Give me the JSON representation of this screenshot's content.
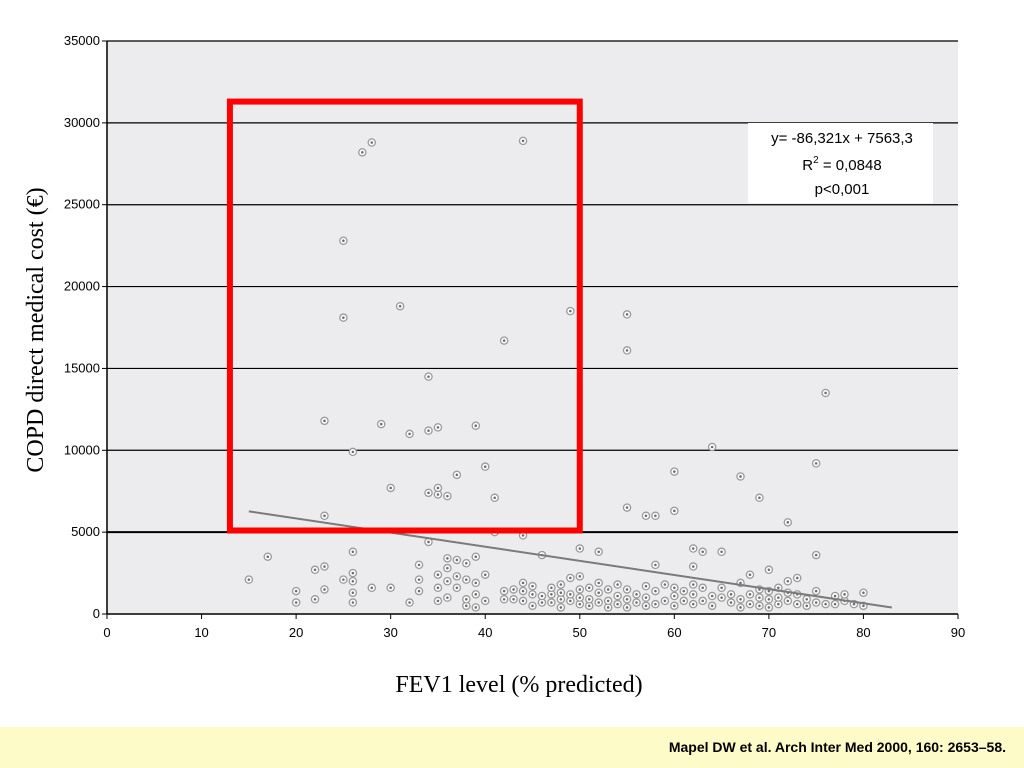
{
  "chart_data": {
    "type": "scatter",
    "xlabel": "FEV1 level (% predicted)",
    "ylabel": "COPD direct medical cost (€)",
    "xlim": [
      0,
      90
    ],
    "ylim": [
      0,
      35000
    ],
    "x_ticks": [
      0,
      10,
      20,
      30,
      40,
      50,
      60,
      70,
      80,
      90
    ],
    "y_ticks": [
      0,
      5000,
      10000,
      15000,
      20000,
      25000,
      30000,
      35000
    ],
    "grid": "horizontal",
    "background": "#ececee",
    "point_color": "#9a9a9a",
    "trendline": {
      "equation": "y= -86,321x + 7563,3",
      "r2_prefix": "R",
      "r2_sup": "2",
      "r2_value": " = 0,0848",
      "p_value": "p<0,001",
      "x_range": [
        15,
        83
      ],
      "color": "#7a7a7a"
    },
    "highlight_box": {
      "x_range": [
        13,
        50
      ],
      "y_range": [
        5100,
        31300
      ],
      "color": "#ff0000"
    },
    "points": [
      [
        15,
        2100
      ],
      [
        17,
        3500
      ],
      [
        20,
        700
      ],
      [
        20,
        1400
      ],
      [
        22,
        900
      ],
      [
        22,
        2700
      ],
      [
        23,
        1500
      ],
      [
        23,
        2900
      ],
      [
        23,
        6000
      ],
      [
        23,
        11800
      ],
      [
        25,
        2100
      ],
      [
        25,
        18100
      ],
      [
        25,
        22800
      ],
      [
        26,
        700
      ],
      [
        26,
        1300
      ],
      [
        26,
        2000
      ],
      [
        26,
        2500
      ],
      [
        26,
        3800
      ],
      [
        26,
        9900
      ],
      [
        27,
        28200
      ],
      [
        28,
        1600
      ],
      [
        28,
        28800
      ],
      [
        29,
        11600
      ],
      [
        30,
        1600
      ],
      [
        30,
        7700
      ],
      [
        31,
        18800
      ],
      [
        32,
        700
      ],
      [
        32,
        11000
      ],
      [
        33,
        1400
      ],
      [
        33,
        2100
      ],
      [
        33,
        3000
      ],
      [
        34,
        4400
      ],
      [
        34,
        7400
      ],
      [
        34,
        11200
      ],
      [
        34,
        14500
      ],
      [
        35,
        800
      ],
      [
        35,
        1600
      ],
      [
        35,
        2400
      ],
      [
        35,
        7300
      ],
      [
        35,
        7700
      ],
      [
        35,
        11400
      ],
      [
        36,
        1000
      ],
      [
        36,
        2000
      ],
      [
        36,
        2800
      ],
      [
        36,
        3400
      ],
      [
        36,
        7200
      ],
      [
        37,
        1600
      ],
      [
        37,
        2300
      ],
      [
        37,
        3300
      ],
      [
        37,
        8500
      ],
      [
        38,
        500
      ],
      [
        38,
        900
      ],
      [
        38,
        2100
      ],
      [
        38,
        3100
      ],
      [
        39,
        400
      ],
      [
        39,
        1200
      ],
      [
        39,
        1900
      ],
      [
        39,
        3500
      ],
      [
        39,
        11500
      ],
      [
        40,
        800
      ],
      [
        40,
        2400
      ],
      [
        40,
        9000
      ],
      [
        41,
        5000
      ],
      [
        41,
        7100
      ],
      [
        42,
        900
      ],
      [
        42,
        1400
      ],
      [
        42,
        16700
      ],
      [
        43,
        900
      ],
      [
        43,
        1500
      ],
      [
        44,
        800
      ],
      [
        44,
        1400
      ],
      [
        44,
        1900
      ],
      [
        44,
        4800
      ],
      [
        44,
        28900
      ],
      [
        45,
        500
      ],
      [
        45,
        1200
      ],
      [
        45,
        1700
      ],
      [
        46,
        700
      ],
      [
        46,
        1100
      ],
      [
        46,
        3600
      ],
      [
        47,
        700
      ],
      [
        47,
        1200
      ],
      [
        47,
        1600
      ],
      [
        48,
        400
      ],
      [
        48,
        900
      ],
      [
        48,
        1300
      ],
      [
        48,
        1800
      ],
      [
        49,
        800
      ],
      [
        49,
        1200
      ],
      [
        49,
        2200
      ],
      [
        49,
        18500
      ],
      [
        50,
        600
      ],
      [
        50,
        1000
      ],
      [
        50,
        1500
      ],
      [
        50,
        2300
      ],
      [
        50,
        4000
      ],
      [
        51,
        500
      ],
      [
        51,
        900
      ],
      [
        51,
        1600
      ],
      [
        52,
        700
      ],
      [
        52,
        1300
      ],
      [
        52,
        1900
      ],
      [
        52,
        3800
      ],
      [
        53,
        400
      ],
      [
        53,
        800
      ],
      [
        53,
        1500
      ],
      [
        54,
        600
      ],
      [
        54,
        1100
      ],
      [
        54,
        1800
      ],
      [
        55,
        400
      ],
      [
        55,
        900
      ],
      [
        55,
        1500
      ],
      [
        55,
        6500
      ],
      [
        55,
        16100
      ],
      [
        55,
        18300
      ],
      [
        56,
        700
      ],
      [
        56,
        1200
      ],
      [
        57,
        500
      ],
      [
        57,
        1000
      ],
      [
        57,
        1700
      ],
      [
        57,
        6000
      ],
      [
        58,
        600
      ],
      [
        58,
        1400
      ],
      [
        58,
        3000
      ],
      [
        58,
        6000
      ],
      [
        59,
        800
      ],
      [
        59,
        1800
      ],
      [
        60,
        500
      ],
      [
        60,
        1100
      ],
      [
        60,
        1600
      ],
      [
        60,
        6300
      ],
      [
        60,
        8700
      ],
      [
        61,
        800
      ],
      [
        61,
        1400
      ],
      [
        62,
        600
      ],
      [
        62,
        1200
      ],
      [
        62,
        1800
      ],
      [
        62,
        2900
      ],
      [
        62,
        4000
      ],
      [
        63,
        800
      ],
      [
        63,
        1600
      ],
      [
        63,
        3800
      ],
      [
        64,
        500
      ],
      [
        64,
        1100
      ],
      [
        64,
        10200
      ],
      [
        65,
        1000
      ],
      [
        65,
        1600
      ],
      [
        65,
        3800
      ],
      [
        66,
        700
      ],
      [
        66,
        1200
      ],
      [
        67,
        400
      ],
      [
        67,
        900
      ],
      [
        67,
        1900
      ],
      [
        67,
        8400
      ],
      [
        68,
        600
      ],
      [
        68,
        1200
      ],
      [
        68,
        2400
      ],
      [
        69,
        500
      ],
      [
        69,
        1000
      ],
      [
        69,
        1500
      ],
      [
        69,
        7100
      ],
      [
        70,
        400
      ],
      [
        70,
        900
      ],
      [
        70,
        1400
      ],
      [
        70,
        2700
      ],
      [
        71,
        600
      ],
      [
        71,
        1000
      ],
      [
        71,
        1600
      ],
      [
        72,
        800
      ],
      [
        72,
        1300
      ],
      [
        72,
        2000
      ],
      [
        72,
        5600
      ],
      [
        73,
        600
      ],
      [
        73,
        1200
      ],
      [
        73,
        2200
      ],
      [
        74,
        500
      ],
      [
        74,
        900
      ],
      [
        75,
        700
      ],
      [
        75,
        1400
      ],
      [
        75,
        3600
      ],
      [
        75,
        9200
      ],
      [
        76,
        600
      ],
      [
        76,
        13500
      ],
      [
        77,
        600
      ],
      [
        77,
        1100
      ],
      [
        78,
        800
      ],
      [
        78,
        1200
      ],
      [
        79,
        600
      ],
      [
        80,
        500
      ],
      [
        80,
        1300
      ]
    ]
  },
  "footer": {
    "citation": "Mapel DW et al. Arch Inter Med 2000, 160: 2653–58."
  }
}
